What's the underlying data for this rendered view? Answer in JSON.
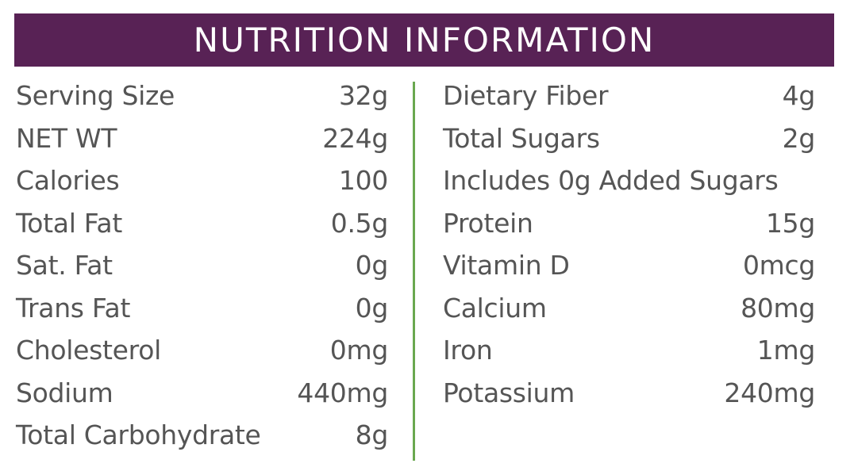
{
  "title": "NUTRITION INFORMATION",
  "colors": {
    "header_bg": "#582255",
    "divider": "#6aa84f",
    "text": "#555555"
  },
  "left": [
    {
      "label": "Serving Size",
      "value": "32g"
    },
    {
      "label": "NET WT",
      "value": "224g"
    },
    {
      "label": "Calories",
      "value": "100"
    },
    {
      "label": "Total Fat",
      "value": "0.5g"
    },
    {
      "label": "Sat. Fat",
      "value": "0g"
    },
    {
      "label": "Trans Fat",
      "value": "0g"
    },
    {
      "label": "Cholesterol",
      "value": "0mg"
    },
    {
      "label": "Sodium",
      "value": "440mg"
    },
    {
      "label": "Total Carbohydrate",
      "value": "8g"
    }
  ],
  "right": [
    {
      "label": "Dietary Fiber",
      "value": "4g"
    },
    {
      "label": "Total Sugars",
      "value": "2g"
    },
    {
      "label": "Includes 0g Added Sugars",
      "value": ""
    },
    {
      "label": "Protein",
      "value": "15g"
    },
    {
      "label": "Vitamin D",
      "value": "0mcg"
    },
    {
      "label": "Calcium",
      "value": "80mg"
    },
    {
      "label": "Iron",
      "value": "1mg"
    },
    {
      "label": "Potassium",
      "value": "240mg"
    }
  ]
}
